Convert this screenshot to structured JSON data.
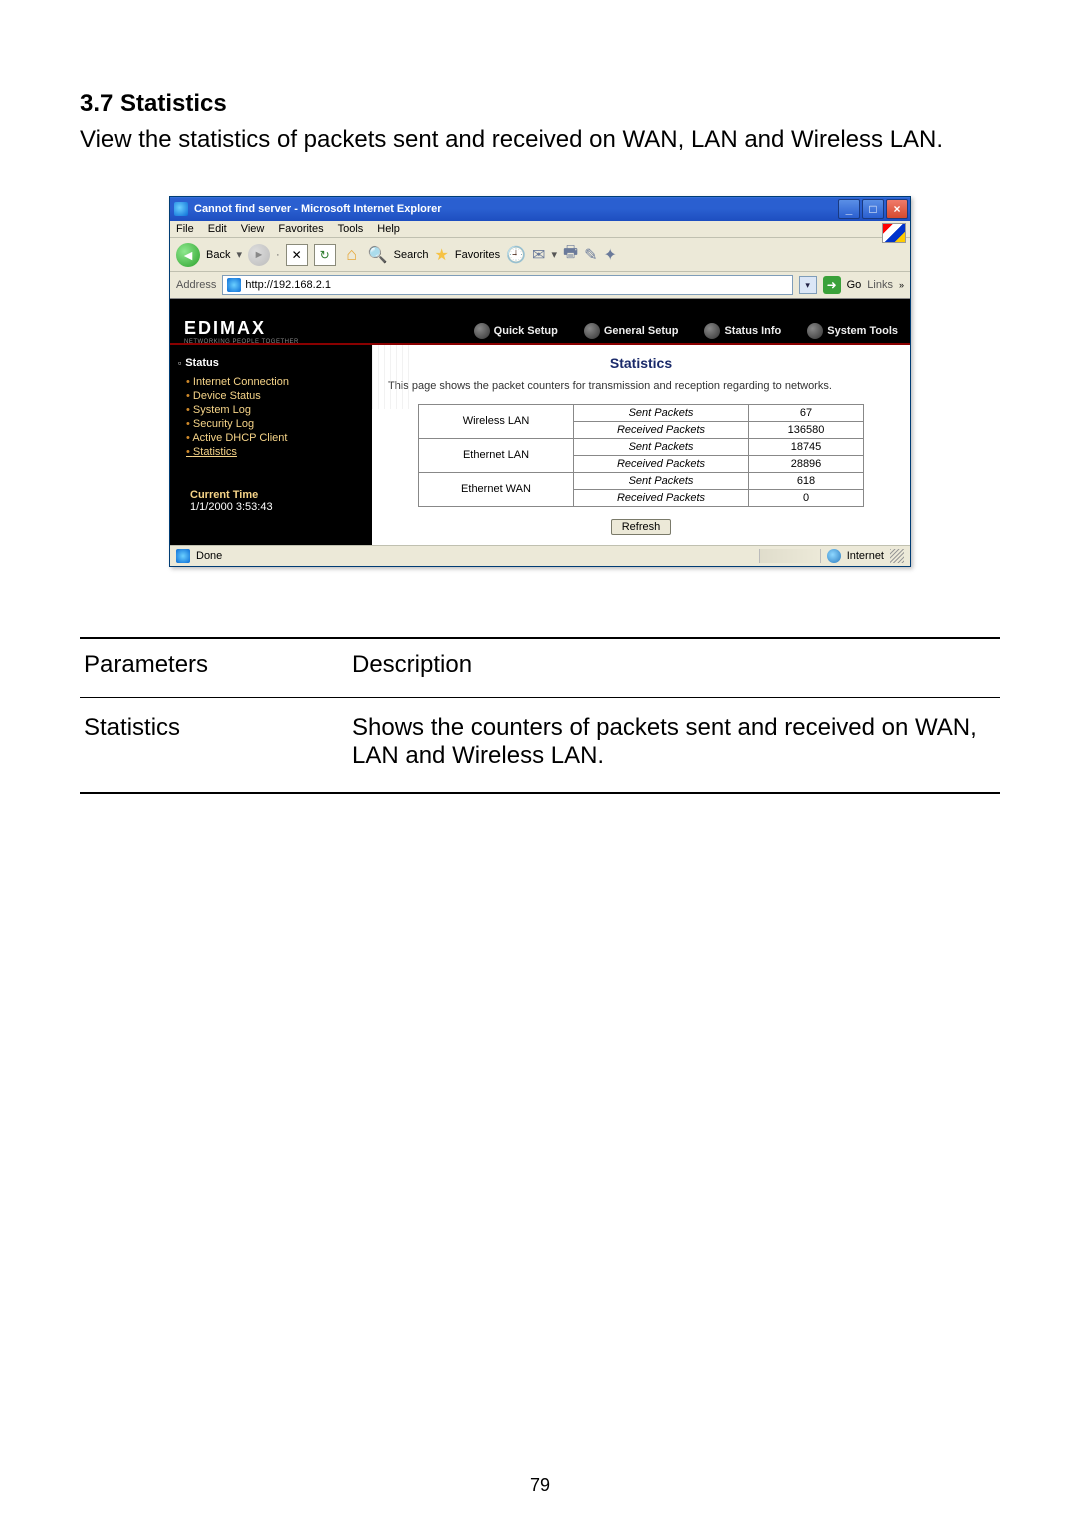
{
  "doc": {
    "heading": "3.7 Statistics",
    "intro": "View the statistics of packets sent and received on WAN, LAN and Wireless LAN.",
    "page_number": "79"
  },
  "ie": {
    "title": "Cannot find server - Microsoft Internet Explorer",
    "menu": {
      "file": "File",
      "edit": "Edit",
      "view": "View",
      "favorites": "Favorites",
      "tools": "Tools",
      "help": "Help"
    },
    "toolbar": {
      "back": "Back",
      "search": "Search",
      "favorites": "Favorites"
    },
    "address_label": "Address",
    "address_value": "http://192.168.2.1",
    "go": "Go",
    "links": "Links",
    "status_done": "Done",
    "status_zone": "Internet"
  },
  "router": {
    "brand": "EDIMAX",
    "brand_sub": "NETWORKING PEOPLE TOGETHER",
    "nav": {
      "quick": "Quick Setup",
      "general": "General Setup",
      "status": "Status Info",
      "tools": "System Tools"
    },
    "sidebar": {
      "heading": "Status",
      "items": {
        "i0": "Internet Connection",
        "i1": "Device Status",
        "i2": "System Log",
        "i3": "Security Log",
        "i4": "Active DHCP Client",
        "i5": "Statistics"
      },
      "time_label": "Current Time",
      "time_value": "1/1/2000 3:53:43"
    },
    "panel": {
      "title": "Statistics",
      "desc": "This page shows the packet counters for transmission and reception regarding to networks.",
      "rows": {
        "r0": {
          "iface": "Wireless LAN",
          "sent_lbl": "Sent Packets",
          "sent_val": "67",
          "recv_lbl": "Received Packets",
          "recv_val": "136580"
        },
        "r1": {
          "iface": "Ethernet LAN",
          "sent_lbl": "Sent Packets",
          "sent_val": "18745",
          "recv_lbl": "Received Packets",
          "recv_val": "28896"
        },
        "r2": {
          "iface": "Ethernet WAN",
          "sent_lbl": "Sent Packets",
          "sent_val": "618",
          "recv_lbl": "Received Packets",
          "recv_val": "0"
        }
      },
      "refresh": "Refresh"
    }
  },
  "table": {
    "h_param": "Parameters",
    "h_desc": "Description",
    "row_param": "Statistics",
    "row_desc": "Shows the counters of packets sent and received on WAN, LAN and Wireless LAN."
  },
  "colors": {
    "titlebar_blue": "#2a5fd0",
    "close_red": "#d64a2f",
    "ie_chrome": "#ece9d8",
    "router_black": "#000000",
    "router_accent": "#8a0000",
    "sidebar_link": "#f6d488",
    "panel_title": "#1a2a6a"
  }
}
